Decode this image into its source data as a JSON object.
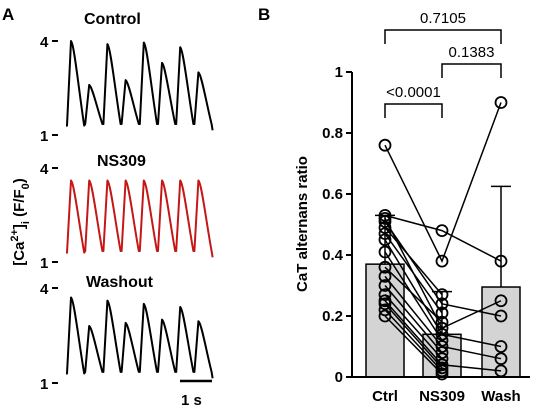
{
  "panel_a": {
    "letter": "A",
    "traces": [
      {
        "title": "Control",
        "color": "#000000",
        "amplitudes": [
          4.0,
          2.6,
          3.9,
          2.75,
          3.95,
          3.3,
          3.8,
          3.0
        ]
      },
      {
        "title": "NS309",
        "color": "#c41818",
        "amplitudes": [
          3.6,
          3.6,
          3.6,
          3.6,
          3.6,
          3.6,
          3.6,
          3.6
        ]
      },
      {
        "title": "Washout",
        "color": "#000000",
        "amplitudes": [
          3.7,
          2.8,
          3.6,
          2.9,
          3.5,
          3.0,
          3.4,
          2.95
        ]
      }
    ],
    "y_tick_top": "4",
    "y_tick_bottom": "1",
    "ylabel_main": "[Ca",
    "ylabel_sup": "2+",
    "ylabel_close": "]",
    "ylabel_sub": "i",
    "ylabel_units": " (F/F",
    "ylabel_units_sub": "0",
    "ylabel_units_close": ")",
    "scale_bar_label": "1 s"
  },
  "chart_data": {
    "type": "bar",
    "panel_letter": "B",
    "ylabel": "CaT alternans ratio",
    "ylim": [
      0,
      1
    ],
    "yticks": [
      "0",
      "0.2",
      "0.4",
      "0.6",
      "0.8",
      "1"
    ],
    "categories": [
      "Ctrl",
      "NS309",
      "Wash"
    ],
    "means": [
      0.37,
      0.14,
      0.295
    ],
    "sd": [
      0.16,
      0.14,
      0.33
    ],
    "individual_points": {
      "Ctrl": [
        0.76,
        0.53,
        0.52,
        0.51,
        0.49,
        0.47,
        0.45,
        0.41,
        0.36,
        0.33,
        0.3,
        0.27,
        0.25,
        0.24,
        0.22,
        0.2
      ],
      "NS309": [
        0.48,
        0.38,
        0.27,
        0.24,
        0.21,
        0.18,
        0.16,
        0.14,
        0.12,
        0.1,
        0.08,
        0.06,
        0.04,
        0.03,
        0.02,
        0.01
      ],
      "Wash": [
        0.9,
        0.38,
        0.25,
        0.2,
        0.1,
        0.06,
        0.02
      ]
    },
    "paired_lines": [
      [
        0.76,
        0.38,
        0.9
      ],
      [
        0.53,
        0.48,
        0.38
      ],
      [
        0.52,
        0.16,
        0.25
      ],
      [
        0.51,
        0.24,
        0.2
      ],
      [
        0.49,
        0.27
      ],
      [
        0.47,
        0.21
      ],
      [
        0.45,
        0.14,
        0.1
      ],
      [
        0.41,
        0.12
      ],
      [
        0.36,
        0.18
      ],
      [
        0.33,
        0.1,
        0.06
      ],
      [
        0.3,
        0.08
      ],
      [
        0.27,
        0.06
      ],
      [
        0.25,
        0.04,
        0.02
      ],
      [
        0.24,
        0.03
      ],
      [
        0.22,
        0.02
      ],
      [
        0.2,
        0.01
      ]
    ],
    "brackets": [
      {
        "from": "Ctrl",
        "to": "Wash",
        "label": "0.7105"
      },
      {
        "from": "NS309",
        "to": "Wash",
        "label": "0.1383"
      },
      {
        "from": "Ctrl",
        "to": "NS309",
        "label": "<0.0001"
      }
    ]
  }
}
